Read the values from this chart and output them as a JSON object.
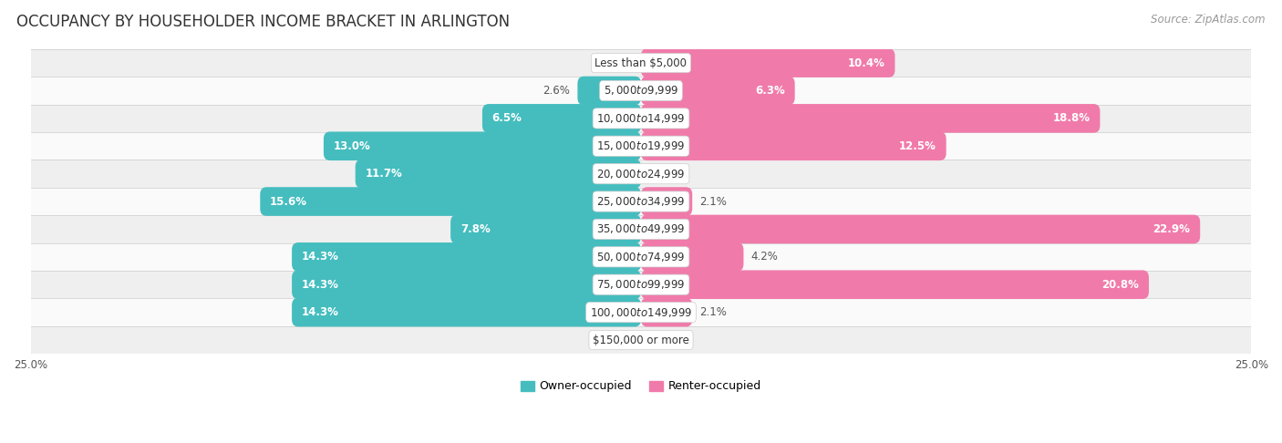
{
  "title": "OCCUPANCY BY HOUSEHOLDER INCOME BRACKET IN ARLINGTON",
  "source": "Source: ZipAtlas.com",
  "categories": [
    "Less than $5,000",
    "$5,000 to $9,999",
    "$10,000 to $14,999",
    "$15,000 to $19,999",
    "$20,000 to $24,999",
    "$25,000 to $34,999",
    "$35,000 to $49,999",
    "$50,000 to $74,999",
    "$75,000 to $99,999",
    "$100,000 to $149,999",
    "$150,000 or more"
  ],
  "owner_values": [
    0.0,
    2.6,
    6.5,
    13.0,
    11.7,
    15.6,
    7.8,
    14.3,
    14.3,
    14.3,
    0.0
  ],
  "renter_values": [
    10.4,
    6.3,
    18.8,
    12.5,
    0.0,
    2.1,
    22.9,
    4.2,
    20.8,
    2.1,
    0.0
  ],
  "owner_color": "#45bdbf",
  "renter_color": "#f07baa",
  "owner_color_light": "#a8dede",
  "renter_color_light": "#f5b8ce",
  "owner_label": "Owner-occupied",
  "renter_label": "Renter-occupied",
  "xlim": 25.0,
  "bar_height": 0.52,
  "row_bg_even": "#efefef",
  "row_bg_odd": "#fafafa",
  "title_fontsize": 12,
  "source_fontsize": 8.5,
  "value_fontsize": 8.5,
  "category_fontsize": 8.5,
  "axis_label_fontsize": 8.5,
  "background_color": "#ffffff",
  "inside_label_threshold": 5.0
}
